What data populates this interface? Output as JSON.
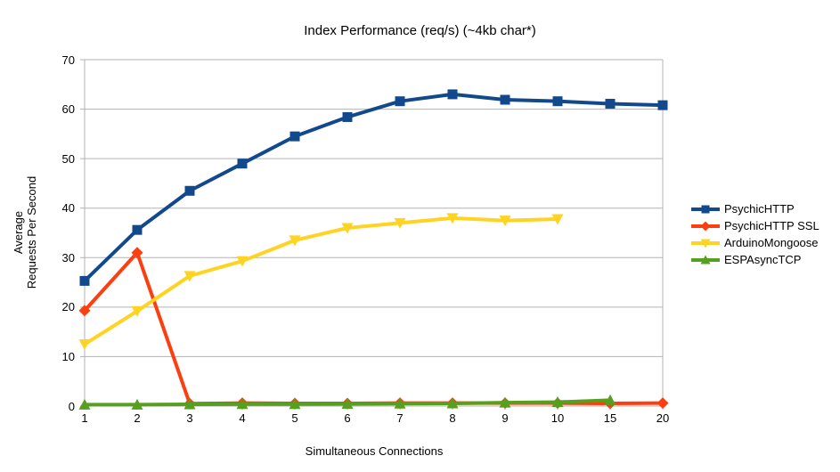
{
  "chart_data": {
    "type": "line",
    "title": "Index Performance (req/s) (~4kb char*)",
    "xlabel": "Simultaneous Connections",
    "ylabel_lines": [
      "Average",
      "Requests Per Second"
    ],
    "categories": [
      "1",
      "2",
      "3",
      "4",
      "5",
      "6",
      "7",
      "8",
      "9",
      "10",
      "15",
      "20"
    ],
    "ylim": [
      0,
      70
    ],
    "yticks": [
      0,
      10,
      20,
      30,
      40,
      50,
      60,
      70
    ],
    "grid": "horizontal",
    "legend_position": "right",
    "colors": {
      "grid": "#b3b3b3",
      "axis": "#b3b3b3",
      "text": "#000000"
    },
    "series": [
      {
        "name": "PsychicHTTP",
        "color": "#11498C",
        "marker": "square",
        "values": [
          25.3,
          35.6,
          43.5,
          49.0,
          54.5,
          58.4,
          61.6,
          63.0,
          61.9,
          61.6,
          61.1,
          60.8
        ]
      },
      {
        "name": "PsychicHTTP SSL",
        "color": "#FC3F11",
        "marker": "diamond",
        "values": [
          19.3,
          31.0,
          0.5,
          0.6,
          0.55,
          0.55,
          0.6,
          0.6,
          0.6,
          0.6,
          0.55,
          0.6
        ]
      },
      {
        "name": "ArduinoMongoose",
        "color": "#FFD321",
        "marker": "triangle-down",
        "values": [
          12.5,
          19.2,
          26.3,
          29.3,
          33.5,
          36.0,
          37.0,
          38.0,
          37.5,
          37.8,
          null,
          null
        ]
      },
      {
        "name": "ESPAsyncTCP",
        "color": "#57A01F",
        "marker": "triangle-up",
        "values": [
          0.3,
          0.3,
          0.35,
          0.4,
          0.4,
          0.45,
          0.5,
          0.55,
          0.7,
          0.8,
          1.2,
          null
        ]
      }
    ]
  }
}
